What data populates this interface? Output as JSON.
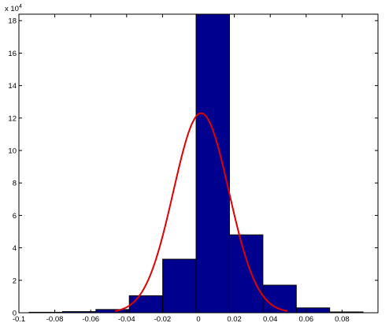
{
  "chart_data": {
    "type": "bar",
    "title": "",
    "xlabel": "",
    "ylabel": "",
    "y_multiplier_label": "x 10",
    "y_multiplier_exponent": "4",
    "xlim": [
      -0.1,
      0.1
    ],
    "ylim": [
      0,
      18.4
    ],
    "x_ticks": [
      "-0.1",
      "-0.08",
      "-0.06",
      "-0.04",
      "-0.02",
      "0",
      "0.02",
      "0.04",
      "0.06",
      "0.08"
    ],
    "x_tick_values": [
      -0.1,
      -0.08,
      -0.06,
      -0.04,
      -0.02,
      0,
      0.02,
      0.04,
      0.06,
      0.08
    ],
    "y_ticks": [
      "0",
      "2",
      "4",
      "6",
      "8",
      "10",
      "12",
      "14",
      "16",
      "18"
    ],
    "y_tick_values": [
      0,
      2,
      4,
      6,
      8,
      10,
      12,
      14,
      16,
      18
    ],
    "grid": false,
    "bins": [
      {
        "x0": -0.0943,
        "x1": -0.0757,
        "value": 0.03
      },
      {
        "x0": -0.0757,
        "x1": -0.0571,
        "value": 0.07
      },
      {
        "x0": -0.0571,
        "x1": -0.0385,
        "value": 0.2
      },
      {
        "x0": -0.0385,
        "x1": -0.0199,
        "value": 1.05
      },
      {
        "x0": -0.0199,
        "x1": -0.0013,
        "value": 3.3
      },
      {
        "x0": -0.0013,
        "x1": 0.0173,
        "value": 18.4
      },
      {
        "x0": 0.0173,
        "x1": 0.0359,
        "value": 4.8
      },
      {
        "x0": 0.0359,
        "x1": 0.0545,
        "value": 1.7
      },
      {
        "x0": 0.0545,
        "x1": 0.0731,
        "value": 0.3
      },
      {
        "x0": 0.0731,
        "x1": 0.0917,
        "value": 0.05
      }
    ],
    "fit_curve": {
      "type": "normal",
      "mean": 0.0015,
      "sigma": 0.0155,
      "peak": 12.3,
      "x_range": [
        -0.0465,
        0.0495
      ]
    },
    "colors": {
      "bar_fill": "#00008f",
      "bar_edge": "#000000",
      "curve": "#e00000",
      "axis": "#000000"
    }
  }
}
